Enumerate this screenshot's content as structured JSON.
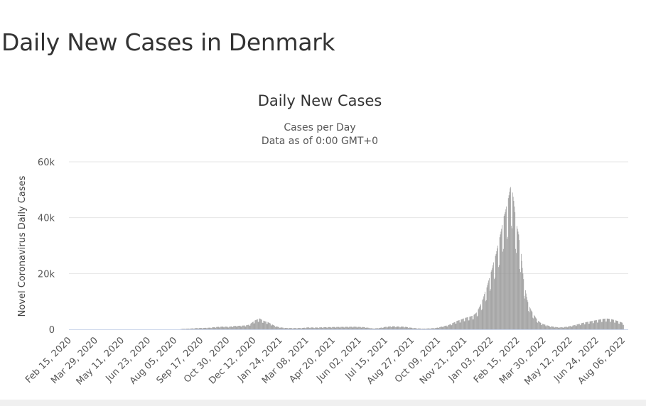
{
  "page": {
    "title": "Daily New Cases in Denmark"
  },
  "chart_data": {
    "type": "bar",
    "title": "Daily New Cases",
    "subtitle_lines": [
      "Cases per Day",
      "Data as of 0:00 GMT+0"
    ],
    "ylabel": "Novel Coronavirus Daily Cases",
    "xlabel": "",
    "ylim": [
      0,
      60000
    ],
    "y_ticks": [
      0,
      20000,
      40000,
      60000
    ],
    "y_tick_labels": [
      "0",
      "20k",
      "40k",
      "60k"
    ],
    "x_range": [
      "2020-02-15",
      "2022-08-15"
    ],
    "x_ticks": [
      "2020-02-15",
      "2020-03-29",
      "2020-05-11",
      "2020-06-23",
      "2020-08-05",
      "2020-09-17",
      "2020-10-30",
      "2020-12-12",
      "2021-01-24",
      "2021-03-08",
      "2021-04-20",
      "2021-06-02",
      "2021-07-15",
      "2021-08-27",
      "2021-10-09",
      "2021-11-21",
      "2022-01-03",
      "2022-02-15",
      "2022-03-30",
      "2022-05-12",
      "2022-06-24",
      "2022-08-06"
    ],
    "x_tick_labels": [
      "Feb 15, 2020",
      "Mar 29, 2020",
      "May 11, 2020",
      "Jun 23, 2020",
      "Aug 05, 2020",
      "Sep 17, 2020",
      "Oct 30, 2020",
      "Dec 12, 2020",
      "Jan 24, 2021",
      "Mar 08, 2021",
      "Apr 20, 2021",
      "Jun 02, 2021",
      "Jul 15, 2021",
      "Aug 27, 2021",
      "Oct 09, 2021",
      "Nov 21, 2021",
      "Jan 03, 2022",
      "Feb 15, 2022",
      "Mar 30, 2022",
      "May 12, 2022",
      "Jun 24, 2022",
      "Aug 06, 2022"
    ],
    "grid": true,
    "legend": false,
    "colors": {
      "bar": "#999999",
      "grid": "#e6e6e6",
      "baseline": "#ccd6eb"
    },
    "series": [
      {
        "x": [
          "2020-08-15",
          "2020-09-01",
          "2020-09-10",
          "2020-09-20",
          "2020-10-01",
          "2020-10-15",
          "2020-10-25",
          "2020-11-01",
          "2020-11-10",
          "2020-11-20",
          "2020-11-28",
          "2020-12-05",
          "2020-12-10",
          "2020-12-14",
          "2020-12-18",
          "2020-12-22",
          "2020-12-26",
          "2020-12-30",
          "2021-01-04",
          "2021-01-09",
          "2021-01-15",
          "2021-01-22",
          "2021-02-01",
          "2021-02-15",
          "2021-03-01",
          "2021-03-10",
          "2021-03-25",
          "2021-04-10",
          "2021-04-25",
          "2021-05-10",
          "2021-05-25",
          "2021-06-10",
          "2021-06-25",
          "2021-07-05",
          "2021-07-15",
          "2021-07-25",
          "2021-08-05",
          "2021-08-15",
          "2021-08-25",
          "2021-09-05",
          "2021-09-15",
          "2021-09-25",
          "2021-10-05",
          "2021-10-15",
          "2021-10-25",
          "2021-11-01",
          "2021-11-08",
          "2021-11-15",
          "2021-11-20",
          "2021-11-25",
          "2021-11-30",
          "2021-12-05",
          "2021-12-10",
          "2021-12-14",
          "2021-12-18",
          "2021-12-21",
          "2021-12-24",
          "2021-12-27",
          "2021-12-30",
          "2022-01-02",
          "2022-01-05",
          "2022-01-08",
          "2022-01-11",
          "2022-01-14",
          "2022-01-17",
          "2022-01-20",
          "2022-01-23",
          "2022-01-26",
          "2022-01-29",
          "2022-02-01",
          "2022-02-03",
          "2022-02-05",
          "2022-02-07",
          "2022-02-09",
          "2022-02-11",
          "2022-02-13",
          "2022-02-15",
          "2022-02-17",
          "2022-02-19",
          "2022-02-21",
          "2022-02-23",
          "2022-02-25",
          "2022-02-28",
          "2022-03-03",
          "2022-03-06",
          "2022-03-09",
          "2022-03-12",
          "2022-03-15",
          "2022-03-18",
          "2022-03-21",
          "2022-03-25",
          "2022-03-30",
          "2022-04-05",
          "2022-04-10",
          "2022-04-15",
          "2022-04-20",
          "2022-04-25",
          "2022-05-01",
          "2022-05-08",
          "2022-05-15",
          "2022-05-22",
          "2022-05-29",
          "2022-06-05",
          "2022-06-12",
          "2022-06-19",
          "2022-06-26",
          "2022-07-03",
          "2022-07-10",
          "2022-07-17",
          "2022-07-24",
          "2022-07-31",
          "2022-08-07"
        ],
        "values": [
          150,
          300,
          450,
          500,
          600,
          900,
          1000,
          900,
          1200,
          1300,
          1400,
          1700,
          2600,
          3200,
          3600,
          3900,
          3300,
          2900,
          2600,
          2000,
          1300,
          800,
          500,
          450,
          500,
          700,
          650,
          800,
          850,
          900,
          950,
          800,
          300,
          500,
          900,
          1100,
          1000,
          950,
          600,
          350,
          250,
          350,
          500,
          1000,
          1500,
          2200,
          3000,
          3500,
          4000,
          4300,
          4600,
          5000,
          6000,
          7500,
          9500,
          11000,
          13500,
          15000,
          17500,
          20000,
          22000,
          25000,
          27000,
          30000,
          33000,
          36000,
          40000,
          42000,
          45000,
          48000,
          50500,
          51500,
          49000,
          46000,
          42000,
          38000,
          36000,
          34000,
          30000,
          27000,
          22000,
          18000,
          14000,
          10500,
          8500,
          7000,
          5800,
          4800,
          3800,
          3000,
          2300,
          1800,
          1400,
          1100,
          950,
          800,
          700,
          800,
          1000,
          1300,
          1700,
          2100,
          2500,
          2800,
          3100,
          3400,
          3700,
          3900,
          3700,
          3300,
          2800,
          2200
        ]
      }
    ]
  }
}
